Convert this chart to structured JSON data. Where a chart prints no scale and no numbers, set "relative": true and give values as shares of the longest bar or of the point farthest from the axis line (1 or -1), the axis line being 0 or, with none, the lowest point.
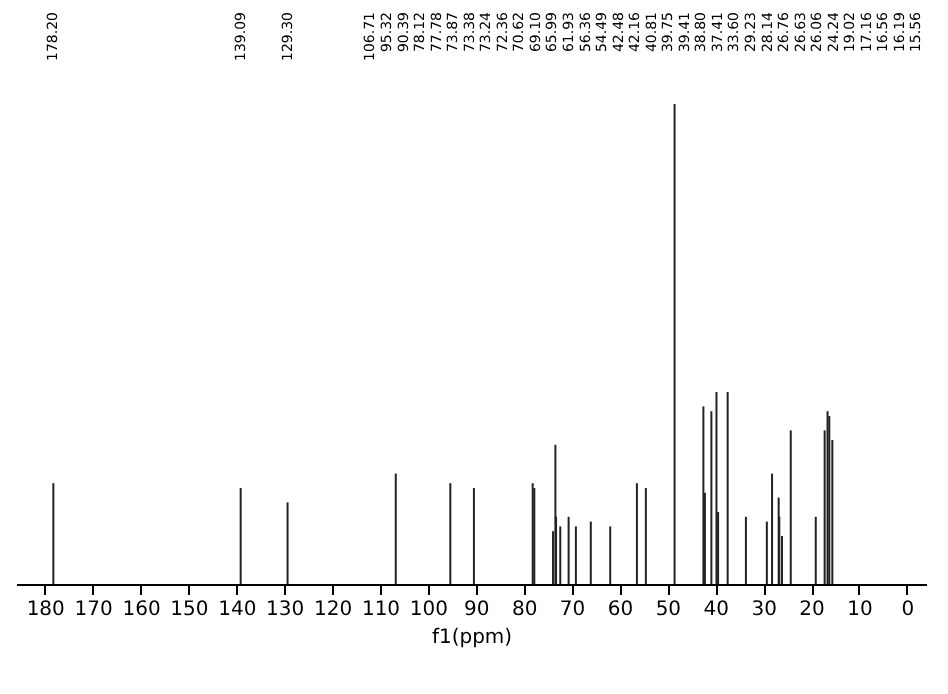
{
  "chart_data": {
    "type": "bar",
    "relative": true,
    "xlabel": "f1(ppm)",
    "xlim": [
      186,
      -4
    ],
    "xticks": [
      180,
      170,
      160,
      150,
      140,
      130,
      120,
      110,
      100,
      90,
      80,
      70,
      60,
      50,
      40,
      30,
      20,
      10,
      0
    ],
    "grid": false,
    "color": "#222222",
    "x": [
      178.2,
      139.09,
      129.3,
      106.71,
      95.32,
      90.39,
      78.12,
      77.78,
      73.87,
      73.38,
      73.24,
      72.36,
      70.62,
      69.1,
      65.99,
      61.93,
      56.36,
      54.49,
      48.5,
      42.48,
      42.16,
      40.81,
      39.75,
      39.41,
      37.41,
      33.6,
      29.23,
      28.14,
      26.76,
      26.63,
      26.06,
      24.24,
      19.02,
      17.16,
      16.56,
      16.19,
      15.56
    ],
    "values": [
      0.21,
      0.2,
      0.17,
      0.23,
      0.21,
      0.2,
      0.21,
      0.2,
      0.11,
      0.29,
      0.14,
      0.12,
      0.14,
      0.12,
      0.13,
      0.12,
      0.21,
      0.2,
      1,
      0.37,
      0.19,
      0.36,
      0.4,
      0.15,
      0.4,
      0.14,
      0.13,
      0.23,
      0.18,
      0.14,
      0.1,
      0.32,
      0.14,
      0.32,
      0.36,
      0.35,
      0.3
    ],
    "annotations": [
      "178.20",
      "139.09",
      "129.30",
      "106.71",
      "95.32",
      "90.39",
      "78.12",
      "77.78",
      "73.87",
      "73.38",
      "73.24",
      "72.36",
      "70.62",
      "69.10",
      "65.99",
      "61.93",
      "56.36",
      "54.49",
      "42.48",
      "42.16",
      "40.81",
      "39.75",
      "39.41",
      "38.80",
      "37.41",
      "33.60",
      "29.23",
      "28.14",
      "26.76",
      "26.63",
      "26.06",
      "24.24",
      "19.02",
      "17.16",
      "16.56",
      "16.19",
      "15.56"
    ]
  }
}
